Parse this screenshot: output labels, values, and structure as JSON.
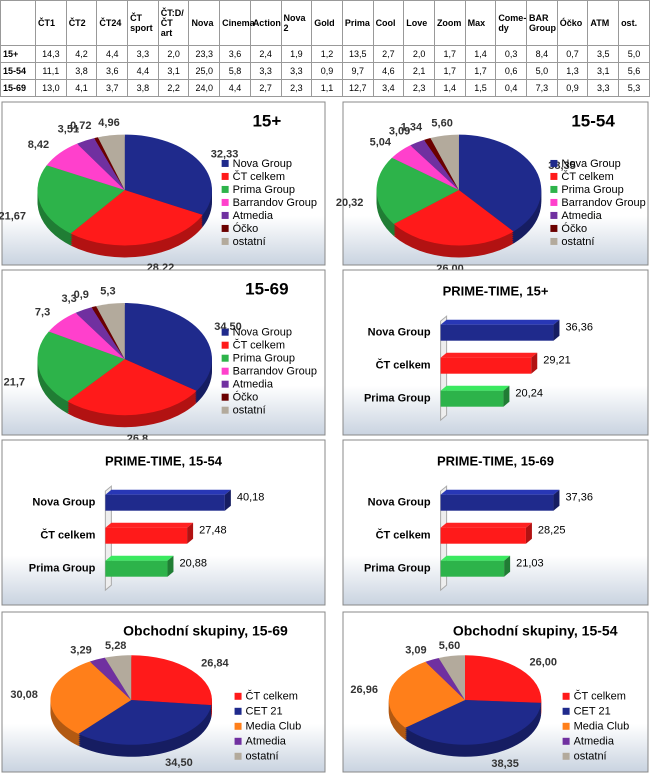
{
  "table": {
    "header": [
      "ČT1",
      "ČT2",
      "ČT24",
      "ČT sport",
      "ČT:D/ ČT art",
      "Nova",
      "Cinema",
      "Action",
      "Nova 2",
      "Gold",
      "Prima",
      "Cool",
      "Love",
      "Zoom",
      "Max",
      "Come-dy",
      "BAR Group",
      "Óčko",
      "ATM",
      "ost."
    ],
    "rows": [
      [
        "15+",
        "14,3",
        "4,2",
        "4,4",
        "3,3",
        "2,0",
        "23,3",
        "3,6",
        "2,4",
        "1,9",
        "1,2",
        "13,5",
        "2,7",
        "2,0",
        "1,7",
        "1,4",
        "0,3",
        "8,4",
        "0,7",
        "3,5",
        "5,0"
      ],
      [
        "15-54",
        "11,1",
        "3,8",
        "3,6",
        "4,4",
        "3,1",
        "25,0",
        "5,8",
        "3,3",
        "3,3",
        "0,9",
        "9,7",
        "4,6",
        "2,1",
        "1,7",
        "1,7",
        "0,6",
        "5,0",
        "1,3",
        "3,1",
        "5,6"
      ],
      [
        "15-69",
        "13,0",
        "4,1",
        "3,7",
        "3,8",
        "2,2",
        "24,0",
        "4,4",
        "2,7",
        "2,3",
        "1,1",
        "12,7",
        "3,4",
        "2,3",
        "1,4",
        "1,5",
        "0,4",
        "7,3",
        "0,9",
        "3,3",
        "5,3"
      ]
    ]
  },
  "chart_data": [
    {
      "type": "pie",
      "title": "15+",
      "legend": "right",
      "categories": [
        "Nova Group",
        "ČT celkem",
        "Prima Group",
        "Barrandov Group",
        "Atmedia",
        "Óčko",
        "ostatní"
      ],
      "values": [
        32.33,
        28.22,
        21.67,
        8.42,
        3.51,
        0.72,
        4.96
      ],
      "value_labels": [
        "32,33",
        "28,22",
        "21,67",
        "8,42",
        "3,51",
        "0,72",
        "4,96"
      ],
      "colors": [
        "#1f2a8c",
        "#ff1a1a",
        "#2db34a",
        "#ff40cc",
        "#7030a0",
        "#6b0000",
        "#b3aa9c"
      ]
    },
    {
      "type": "pie",
      "title": "15-54",
      "legend": "right",
      "categories": [
        "Nova Group",
        "ČT celkem",
        "Prima Group",
        "Barrandov Group",
        "Atmedia",
        "Óčko",
        "ostatní"
      ],
      "values": [
        38.35,
        26.0,
        20.32,
        5.04,
        3.09,
        1.34,
        5.6
      ],
      "value_labels": [
        "38,35",
        "26,00",
        "20,32",
        "5,04",
        "3,09",
        "1,34",
        "5,60"
      ],
      "colors": [
        "#1f2a8c",
        "#ff1a1a",
        "#2db34a",
        "#ff40cc",
        "#7030a0",
        "#6b0000",
        "#b3aa9c"
      ]
    },
    {
      "type": "pie",
      "title": "15-69",
      "legend": "right",
      "categories": [
        "Nova Group",
        "ČT celkem",
        "Prima Group",
        "Barrandov Group",
        "Atmedia",
        "Óčko",
        "ostatní"
      ],
      "values": [
        34.5,
        26.8,
        21.7,
        7.3,
        3.3,
        0.9,
        5.3
      ],
      "value_labels": [
        "34,50",
        "26,8",
        "21,7",
        "7,3",
        "3,3",
        "0,9",
        "5,3"
      ],
      "colors": [
        "#1f2a8c",
        "#ff1a1a",
        "#2db34a",
        "#ff40cc",
        "#7030a0",
        "#6b0000",
        "#b3aa9c"
      ]
    },
    {
      "type": "bar",
      "title": "PRIME-TIME, 15+",
      "categories": [
        "Nova Group",
        "ČT celkem",
        "Prima Group"
      ],
      "values": [
        36.36,
        29.21,
        20.24
      ],
      "value_labels": [
        "36,36",
        "29,21",
        "20,24"
      ],
      "colors": [
        "#1f2a8c",
        "#ff1a1a",
        "#2db34a"
      ]
    },
    {
      "type": "bar",
      "title": "PRIME-TIME, 15-54",
      "categories": [
        "Nova Group",
        "ČT celkem",
        "Prima Group"
      ],
      "values": [
        40.18,
        27.48,
        20.88
      ],
      "value_labels": [
        "40,18",
        "27,48",
        "20,88"
      ],
      "colors": [
        "#1f2a8c",
        "#ff1a1a",
        "#2db34a"
      ]
    },
    {
      "type": "bar",
      "title": "PRIME-TIME, 15-69",
      "categories": [
        "Nova Group",
        "ČT celkem",
        "Prima Group"
      ],
      "values": [
        37.36,
        28.25,
        21.03
      ],
      "value_labels": [
        "37,36",
        "28,25",
        "21,03"
      ],
      "colors": [
        "#1f2a8c",
        "#ff1a1a",
        "#2db34a"
      ]
    },
    {
      "type": "pie",
      "title": "Obchodní skupiny, 15-69",
      "legend": "lower right",
      "categories": [
        "ČT celkem",
        "CET 21",
        "Media Club",
        "Atmedia",
        "ostatní"
      ],
      "values": [
        26.84,
        34.5,
        30.08,
        3.29,
        5.28
      ],
      "value_labels": [
        "26,84",
        "34,50",
        "30,08",
        "3,29",
        "5,28"
      ],
      "colors": [
        "#ff1a1a",
        "#1f2a8c",
        "#ff7f1a",
        "#7030a0",
        "#b3aa9c"
      ]
    },
    {
      "type": "pie",
      "title": "Obchodní skupiny, 15-54",
      "legend": "lower right",
      "categories": [
        "ČT celkem",
        "CET 21",
        "Media Club",
        "Atmedia",
        "ostatní"
      ],
      "values": [
        26.0,
        38.35,
        26.96,
        3.09,
        5.6
      ],
      "value_labels": [
        "26,00",
        "38,35",
        "26,96",
        "3,09",
        "5,60"
      ],
      "colors": [
        "#ff1a1a",
        "#1f2a8c",
        "#ff7f1a",
        "#7030a0",
        "#b3aa9c"
      ]
    }
  ]
}
